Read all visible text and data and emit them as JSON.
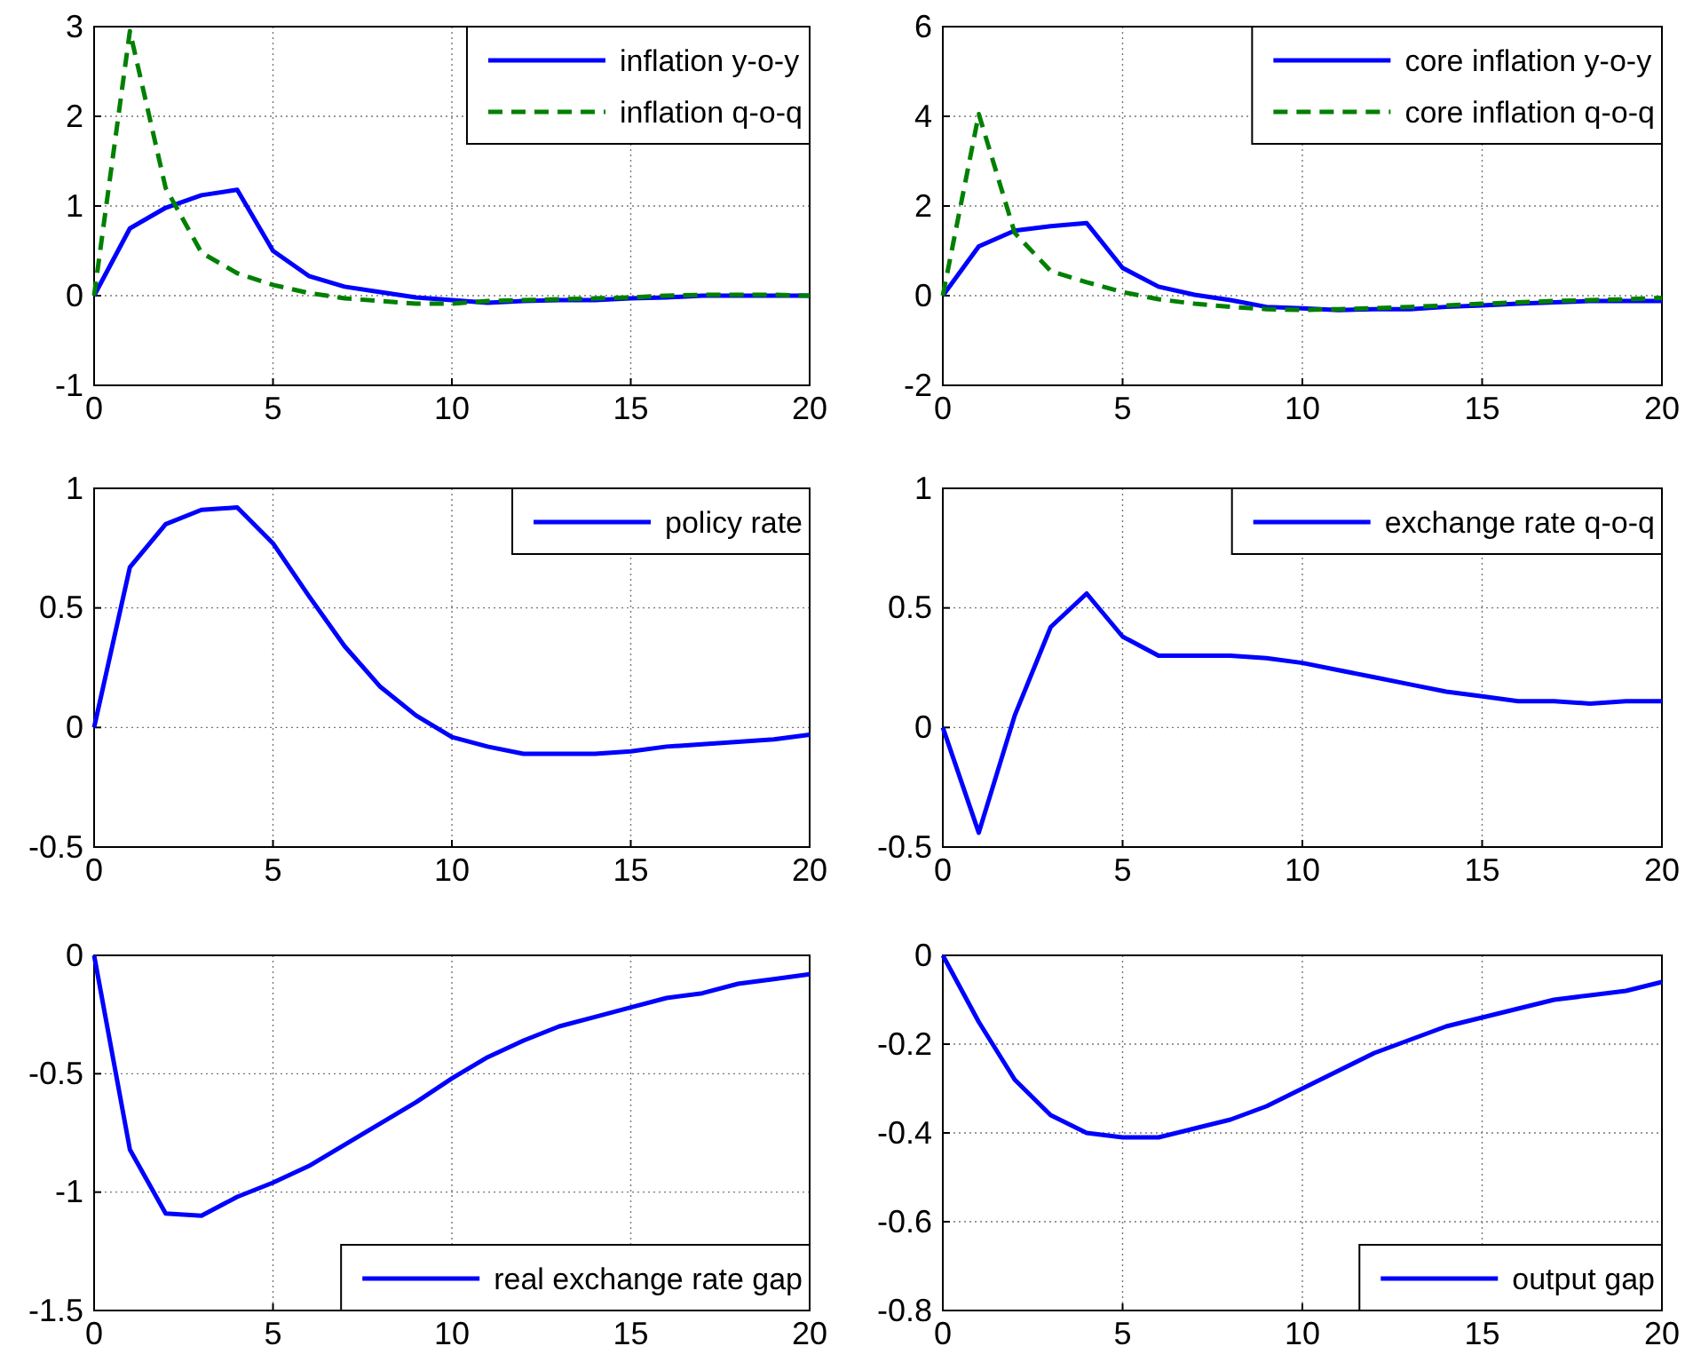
{
  "chart_data": [
    {
      "type": "line",
      "x": [
        0,
        1,
        2,
        3,
        4,
        5,
        6,
        7,
        8,
        9,
        10,
        11,
        12,
        13,
        14,
        15,
        16,
        17,
        18,
        19,
        20
      ],
      "xlim": [
        0,
        20
      ],
      "xticks": [
        0,
        5,
        10,
        15,
        20
      ],
      "ylim": [
        -1,
        3
      ],
      "yticks": [
        -1,
        0,
        1,
        2,
        3
      ],
      "grid": true,
      "legend": "top right",
      "series": [
        {
          "name": "inflation y-o-y",
          "color": "#0000ff",
          "line_style": "solid",
          "values": [
            0,
            0.75,
            0.98,
            1.12,
            1.18,
            0.5,
            0.22,
            0.1,
            0.04,
            -0.02,
            -0.05,
            -0.08,
            -0.06,
            -0.05,
            -0.05,
            -0.03,
            -0.02,
            0,
            0,
            0,
            0
          ]
        },
        {
          "name": "inflation q-o-q",
          "color": "#008000",
          "line_style": "dashed",
          "values": [
            0,
            2.95,
            1.2,
            0.48,
            0.25,
            0.12,
            0.03,
            -0.03,
            -0.06,
            -0.09,
            -0.09,
            -0.06,
            -0.05,
            -0.04,
            -0.03,
            -0.02,
            0,
            0.01,
            0.01,
            0.01,
            0
          ]
        }
      ]
    },
    {
      "type": "line",
      "x": [
        0,
        1,
        2,
        3,
        4,
        5,
        6,
        7,
        8,
        9,
        10,
        11,
        12,
        13,
        14,
        15,
        16,
        17,
        18,
        19,
        20
      ],
      "xlim": [
        0,
        20
      ],
      "xticks": [
        0,
        5,
        10,
        15,
        20
      ],
      "ylim": [
        -2,
        6
      ],
      "yticks": [
        -2,
        0,
        2,
        4,
        6
      ],
      "grid": true,
      "legend": "top right",
      "series": [
        {
          "name": "core inflation y-o-y",
          "color": "#0000ff",
          "line_style": "solid",
          "values": [
            0,
            1.1,
            1.45,
            1.55,
            1.62,
            0.62,
            0.2,
            0.02,
            -0.1,
            -0.25,
            -0.28,
            -0.32,
            -0.3,
            -0.3,
            -0.25,
            -0.22,
            -0.18,
            -0.15,
            -0.12,
            -0.12,
            -0.12
          ]
        },
        {
          "name": "core inflation q-o-q",
          "color": "#008000",
          "line_style": "dashed",
          "values": [
            0,
            4.05,
            1.4,
            0.55,
            0.3,
            0.08,
            -0.08,
            -0.18,
            -0.25,
            -0.3,
            -0.32,
            -0.3,
            -0.28,
            -0.25,
            -0.22,
            -0.18,
            -0.15,
            -0.12,
            -0.1,
            -0.08,
            -0.05
          ]
        }
      ]
    },
    {
      "type": "line",
      "x": [
        0,
        1,
        2,
        3,
        4,
        5,
        6,
        7,
        8,
        9,
        10,
        11,
        12,
        13,
        14,
        15,
        16,
        17,
        18,
        19,
        20
      ],
      "xlim": [
        0,
        20
      ],
      "xticks": [
        0,
        5,
        10,
        15,
        20
      ],
      "ylim": [
        -0.5,
        1
      ],
      "yticks": [
        -0.5,
        0,
        0.5,
        1
      ],
      "grid": true,
      "legend": "top right",
      "series": [
        {
          "name": "policy rate",
          "color": "#0000ff",
          "line_style": "solid",
          "values": [
            0,
            0.67,
            0.85,
            0.91,
            0.92,
            0.77,
            0.55,
            0.34,
            0.17,
            0.05,
            -0.04,
            -0.08,
            -0.11,
            -0.11,
            -0.11,
            -0.1,
            -0.08,
            -0.07,
            -0.06,
            -0.05,
            -0.03
          ]
        }
      ]
    },
    {
      "type": "line",
      "x": [
        0,
        1,
        2,
        3,
        4,
        5,
        6,
        7,
        8,
        9,
        10,
        11,
        12,
        13,
        14,
        15,
        16,
        17,
        18,
        19,
        20
      ],
      "xlim": [
        0,
        20
      ],
      "xticks": [
        0,
        5,
        10,
        15,
        20
      ],
      "ylim": [
        -0.5,
        1
      ],
      "yticks": [
        -0.5,
        0,
        0.5,
        1
      ],
      "grid": true,
      "legend": "top right",
      "series": [
        {
          "name": "exchange rate q-o-q",
          "color": "#0000ff",
          "line_style": "solid",
          "values": [
            0,
            -0.44,
            0.05,
            0.42,
            0.56,
            0.38,
            0.3,
            0.3,
            0.3,
            0.29,
            0.27,
            0.24,
            0.21,
            0.18,
            0.15,
            0.13,
            0.11,
            0.11,
            0.1,
            0.11,
            0.11
          ]
        }
      ]
    },
    {
      "type": "line",
      "x": [
        0,
        1,
        2,
        3,
        4,
        5,
        6,
        7,
        8,
        9,
        10,
        11,
        12,
        13,
        14,
        15,
        16,
        17,
        18,
        19,
        20
      ],
      "xlim": [
        0,
        20
      ],
      "xticks": [
        0,
        5,
        10,
        15,
        20
      ],
      "ylim": [
        -1.5,
        0
      ],
      "yticks": [
        -1.5,
        -1,
        -0.5,
        0
      ],
      "grid": true,
      "legend": "bottom right",
      "series": [
        {
          "name": "real exchange rate gap",
          "color": "#0000ff",
          "line_style": "solid",
          "values": [
            0,
            -0.82,
            -1.09,
            -1.1,
            -1.02,
            -0.96,
            -0.89,
            -0.8,
            -0.71,
            -0.62,
            -0.52,
            -0.43,
            -0.36,
            -0.3,
            -0.26,
            -0.22,
            -0.18,
            -0.16,
            -0.12,
            -0.1,
            -0.08
          ]
        }
      ]
    },
    {
      "type": "line",
      "x": [
        0,
        1,
        2,
        3,
        4,
        5,
        6,
        7,
        8,
        9,
        10,
        11,
        12,
        13,
        14,
        15,
        16,
        17,
        18,
        19,
        20
      ],
      "xlim": [
        0,
        20
      ],
      "xticks": [
        0,
        5,
        10,
        15,
        20
      ],
      "ylim": [
        -0.8,
        0
      ],
      "yticks": [
        -0.8,
        -0.6,
        -0.4,
        -0.2,
        0
      ],
      "grid": true,
      "legend": "bottom right",
      "series": [
        {
          "name": "output gap",
          "color": "#0000ff",
          "line_style": "solid",
          "values": [
            0,
            -0.15,
            -0.28,
            -0.36,
            -0.4,
            -0.41,
            -0.41,
            -0.39,
            -0.37,
            -0.34,
            -0.3,
            -0.26,
            -0.22,
            -0.19,
            -0.16,
            -0.14,
            -0.12,
            -0.1,
            -0.09,
            -0.08,
            -0.06
          ]
        }
      ]
    }
  ]
}
